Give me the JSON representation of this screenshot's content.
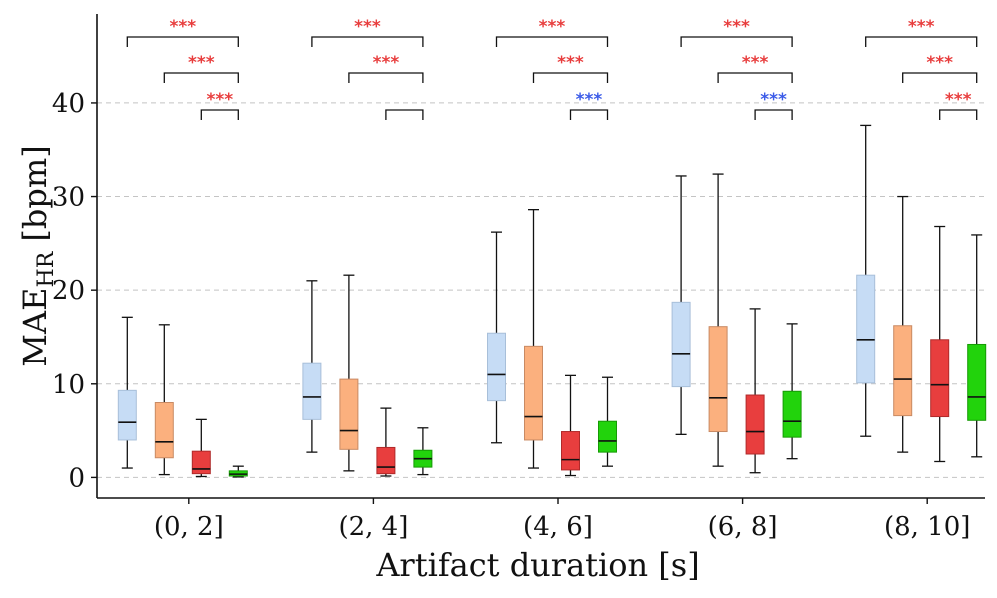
{
  "chart_data": {
    "type": "box",
    "title": "",
    "xlabel": "Artifact duration [s]",
    "ylabel_main": "MAE",
    "ylabel_sub": "HR",
    "ylabel_unit": " [bpm]",
    "ylim": [
      -2.2,
      49.5
    ],
    "yticks": [
      0,
      10,
      20,
      30,
      40
    ],
    "grid": "y-dashed",
    "categories": [
      "(0, 2]",
      "(2, 4]",
      "(4, 6]",
      "(6, 8]",
      "(8, 10]"
    ],
    "series_colors": [
      "#c6dcf5",
      "#fbb07e",
      "#e83e3e",
      "#22d30c"
    ],
    "series_edge_colors": [
      "#a8bfd9",
      "#c98a63",
      "#b02a2a",
      "#169a05"
    ],
    "groups": [
      {
        "category": "(0, 2]",
        "boxes": [
          {
            "whislo": 1.0,
            "q1": 4.0,
            "median": 5.9,
            "q3": 9.3,
            "whishi": 17.1
          },
          {
            "whislo": 0.3,
            "q1": 2.1,
            "median": 3.8,
            "q3": 8.0,
            "whishi": 16.3
          },
          {
            "whislo": 0.1,
            "q1": 0.4,
            "median": 0.9,
            "q3": 2.8,
            "whishi": 6.2
          },
          {
            "whislo": 0.05,
            "q1": 0.15,
            "median": 0.35,
            "q3": 0.7,
            "whishi": 1.2
          }
        ],
        "significance": [
          {
            "text": "***",
            "color": "#e83e3e"
          },
          {
            "text": "***",
            "color": "#e83e3e"
          },
          {
            "text": "***",
            "color": "#e83e3e"
          }
        ]
      },
      {
        "category": "(2, 4]",
        "boxes": [
          {
            "whislo": 2.7,
            "q1": 6.2,
            "median": 8.6,
            "q3": 12.2,
            "whishi": 21.0
          },
          {
            "whislo": 0.7,
            "q1": 3.0,
            "median": 5.0,
            "q3": 10.5,
            "whishi": 21.6
          },
          {
            "whislo": 0.15,
            "q1": 0.4,
            "median": 1.1,
            "q3": 3.2,
            "whishi": 7.4
          },
          {
            "whislo": 0.3,
            "q1": 1.1,
            "median": 2.0,
            "q3": 2.9,
            "whishi": 5.3
          }
        ],
        "significance": [
          {
            "text": "***",
            "color": "#e83e3e"
          },
          {
            "text": "***",
            "color": "#e83e3e"
          },
          {
            "text": "",
            "color": "#e83e3e"
          }
        ]
      },
      {
        "category": "(4, 6]",
        "boxes": [
          {
            "whislo": 3.7,
            "q1": 8.2,
            "median": 11.0,
            "q3": 15.4,
            "whishi": 26.2
          },
          {
            "whislo": 1.0,
            "q1": 4.0,
            "median": 6.5,
            "q3": 14.0,
            "whishi": 28.6
          },
          {
            "whislo": 0.2,
            "q1": 0.8,
            "median": 1.9,
            "q3": 4.9,
            "whishi": 10.9
          },
          {
            "whislo": 1.2,
            "q1": 2.7,
            "median": 3.9,
            "q3": 6.0,
            "whishi": 10.7
          }
        ],
        "significance": [
          {
            "text": "***",
            "color": "#e83e3e"
          },
          {
            "text": "***",
            "color": "#e83e3e"
          },
          {
            "text": "***",
            "color": "#3b5be8"
          }
        ]
      },
      {
        "category": "(6, 8]",
        "boxes": [
          {
            "whislo": 4.6,
            "q1": 9.7,
            "median": 13.2,
            "q3": 18.7,
            "whishi": 32.2
          },
          {
            "whislo": 1.2,
            "q1": 4.9,
            "median": 8.5,
            "q3": 16.1,
            "whishi": 32.4
          },
          {
            "whislo": 0.5,
            "q1": 2.5,
            "median": 4.9,
            "q3": 8.8,
            "whishi": 18.0
          },
          {
            "whislo": 2.0,
            "q1": 4.3,
            "median": 6.0,
            "q3": 9.2,
            "whishi": 16.4
          }
        ],
        "significance": [
          {
            "text": "***",
            "color": "#e83e3e"
          },
          {
            "text": "***",
            "color": "#e83e3e"
          },
          {
            "text": "***",
            "color": "#3b5be8"
          }
        ]
      },
      {
        "category": "(8, 10]",
        "boxes": [
          {
            "whislo": 4.4,
            "q1": 10.1,
            "median": 14.7,
            "q3": 21.6,
            "whishi": 37.6
          },
          {
            "whislo": 2.7,
            "q1": 6.6,
            "median": 10.5,
            "q3": 16.2,
            "whishi": 30.0
          },
          {
            "whislo": 1.7,
            "q1": 6.5,
            "median": 9.9,
            "q3": 14.7,
            "whishi": 26.8
          },
          {
            "whislo": 2.2,
            "q1": 6.1,
            "median": 8.6,
            "q3": 14.2,
            "whishi": 25.9
          }
        ],
        "significance": [
          {
            "text": "***",
            "color": "#e83e3e"
          },
          {
            "text": "***",
            "color": "#e83e3e"
          },
          {
            "text": "***",
            "color": "#e83e3e"
          }
        ]
      }
    ]
  }
}
